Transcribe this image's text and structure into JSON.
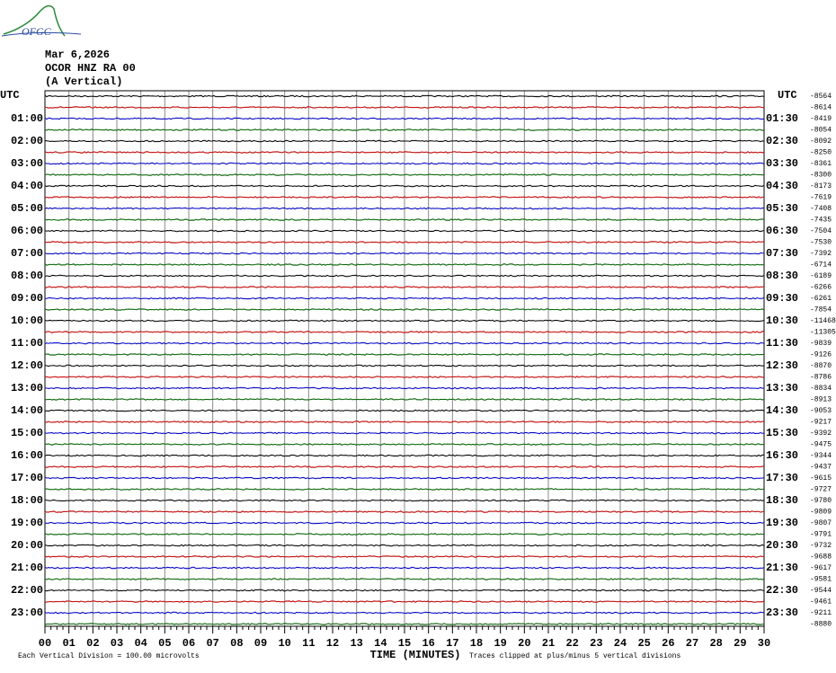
{
  "logo": "OFGC",
  "header": {
    "date": "Mar 6,2026",
    "station": "OCOR HNZ RA 00",
    "component": "(A Vertical)"
  },
  "left_axis": {
    "title": "UTC",
    "labels": [
      "01:00",
      "02:00",
      "03:00",
      "04:00",
      "05:00",
      "06:00",
      "07:00",
      "08:00",
      "09:00",
      "10:00",
      "11:00",
      "12:00",
      "13:00",
      "14:00",
      "15:00",
      "16:00",
      "17:00",
      "18:00",
      "19:00",
      "20:00",
      "21:00",
      "22:00",
      "23:00"
    ]
  },
  "right_axis": {
    "title": "UTC",
    "labels": [
      "01:30",
      "02:30",
      "03:30",
      "04:30",
      "05:30",
      "06:30",
      "07:30",
      "08:30",
      "09:30",
      "10:30",
      "11:30",
      "12:30",
      "13:30",
      "14:30",
      "15:30",
      "16:30",
      "17:30",
      "18:30",
      "19:30",
      "20:30",
      "21:30",
      "22:30",
      "23:30"
    ]
  },
  "offsets": [
    -8564,
    -8614,
    -8419,
    -8054,
    -8092,
    -8250,
    -8361,
    -8300,
    -8173,
    -7619,
    -7408,
    -7435,
    -7504,
    -7530,
    -7392,
    -6714,
    -6189,
    -6266,
    -6261,
    -7854,
    -11468,
    -11305,
    -9839,
    -9126,
    -8870,
    -8786,
    -8834,
    -8913,
    -9053,
    -9217,
    -9392,
    -9475,
    -9344,
    -9437,
    -9615,
    -9727,
    -9780,
    -9809,
    -9807,
    -9791,
    -9732,
    -9688,
    -9617,
    -9581,
    -9544,
    -9461,
    -9211,
    -8880
  ],
  "x_axis": {
    "labels": [
      "00",
      "01",
      "02",
      "03",
      "04",
      "05",
      "06",
      "07",
      "08",
      "09",
      "10",
      "11",
      "12",
      "13",
      "14",
      "15",
      "16",
      "17",
      "18",
      "19",
      "20",
      "21",
      "22",
      "23",
      "24",
      "25",
      "26",
      "27",
      "28",
      "29",
      "30"
    ],
    "title": "TIME (MINUTES)"
  },
  "footer": {
    "scale": "Each Vertical Division =  100.00 microvolts",
    "clip": "Traces clipped at plus/minus 5 vertical divisions"
  }
}
